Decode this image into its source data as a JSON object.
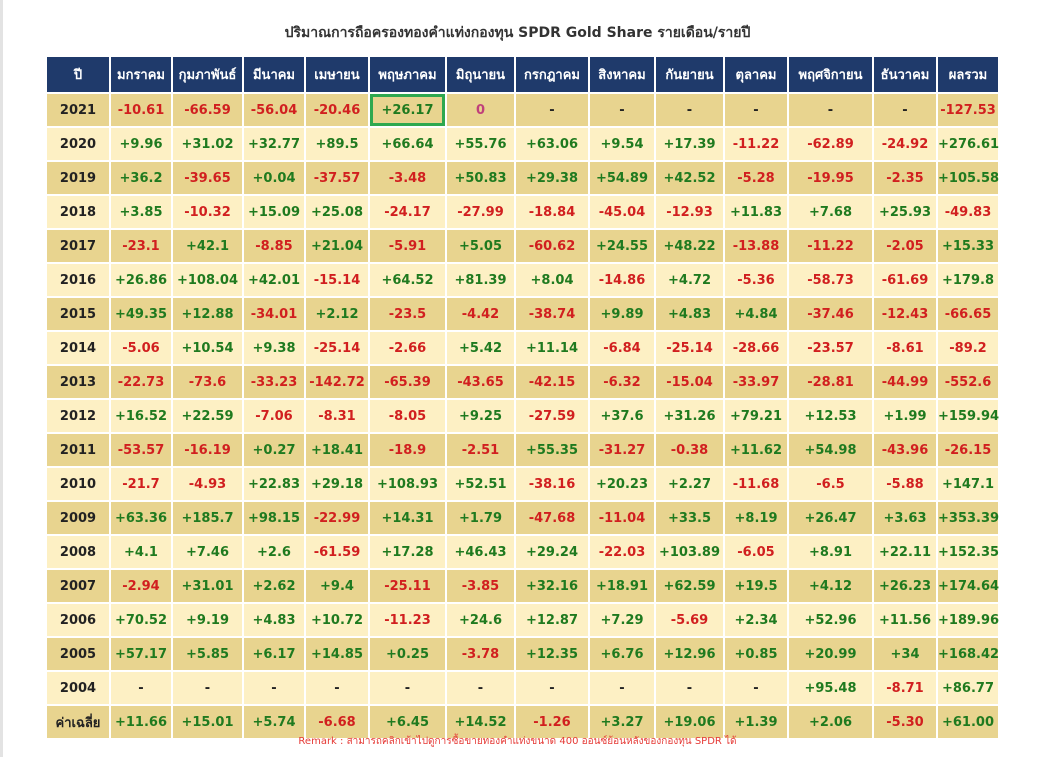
{
  "title": "ปริมาณการถือครองทองคำแท่งกองทุน SPDR Gold Share รายเดือน/รายปี",
  "headers": [
    "ปี",
    "มกราคม",
    "กุมภาพันธ์",
    "มีนาคม",
    "เมษายน",
    "พฤษภาคม",
    "มิถุนายน",
    "กรกฎาคม",
    "สิงหาคม",
    "กันยายน",
    "ตุลาคม",
    "พฤศจิกายน",
    "ธันวาคม",
    "ผลรวม"
  ],
  "rows": [
    [
      "2021",
      "-10.61",
      "-66.59",
      "-56.04",
      "-20.46",
      "+26.17",
      "0",
      "-",
      "-",
      "-",
      "-",
      "-",
      "-",
      "-127.53"
    ],
    [
      "2020",
      "+9.96",
      "+31.02",
      "+32.77",
      "+89.5",
      "+66.64",
      "+55.76",
      "+63.06",
      "+9.54",
      "+17.39",
      "-11.22",
      "-62.89",
      "-24.92",
      "+276.61"
    ],
    [
      "2019",
      "+36.2",
      "-39.65",
      "+0.04",
      "-37.57",
      "-3.48",
      "+50.83",
      "+29.38",
      "+54.89",
      "+42.52",
      "-5.28",
      "-19.95",
      "-2.35",
      "+105.58"
    ],
    [
      "2018",
      "+3.85",
      "-10.32",
      "+15.09",
      "+25.08",
      "-24.17",
      "-27.99",
      "-18.84",
      "-45.04",
      "-12.93",
      "+11.83",
      "+7.68",
      "+25.93",
      "-49.83"
    ],
    [
      "2017",
      "-23.1",
      "+42.1",
      "-8.85",
      "+21.04",
      "-5.91",
      "+5.05",
      "-60.62",
      "+24.55",
      "+48.22",
      "-13.88",
      "-11.22",
      "-2.05",
      "+15.33"
    ],
    [
      "2016",
      "+26.86",
      "+108.04",
      "+42.01",
      "-15.14",
      "+64.52",
      "+81.39",
      "+8.04",
      "-14.86",
      "+4.72",
      "-5.36",
      "-58.73",
      "-61.69",
      "+179.8"
    ],
    [
      "2015",
      "+49.35",
      "+12.88",
      "-34.01",
      "+2.12",
      "-23.5",
      "-4.42",
      "-38.74",
      "+9.89",
      "+4.83",
      "+4.84",
      "-37.46",
      "-12.43",
      "-66.65"
    ],
    [
      "2014",
      "-5.06",
      "+10.54",
      "+9.38",
      "-25.14",
      "-2.66",
      "+5.42",
      "+11.14",
      "-6.84",
      "-25.14",
      "-28.66",
      "-23.57",
      "-8.61",
      "-89.2"
    ],
    [
      "2013",
      "-22.73",
      "-73.6",
      "-33.23",
      "-142.72",
      "-65.39",
      "-43.65",
      "-42.15",
      "-6.32",
      "-15.04",
      "-33.97",
      "-28.81",
      "-44.99",
      "-552.6"
    ],
    [
      "2012",
      "+16.52",
      "+22.59",
      "-7.06",
      "-8.31",
      "-8.05",
      "+9.25",
      "-27.59",
      "+37.6",
      "+31.26",
      "+79.21",
      "+12.53",
      "+1.99",
      "+159.94"
    ],
    [
      "2011",
      "-53.57",
      "-16.19",
      "+0.27",
      "+18.41",
      "-18.9",
      "-2.51",
      "+55.35",
      "-31.27",
      "-0.38",
      "+11.62",
      "+54.98",
      "-43.96",
      "-26.15"
    ],
    [
      "2010",
      "-21.7",
      "-4.93",
      "+22.83",
      "+29.18",
      "+108.93",
      "+52.51",
      "-38.16",
      "+20.23",
      "+2.27",
      "-11.68",
      "-6.5",
      "-5.88",
      "+147.1"
    ],
    [
      "2009",
      "+63.36",
      "+185.7",
      "+98.15",
      "-22.99",
      "+14.31",
      "+1.79",
      "-47.68",
      "-11.04",
      "+33.5",
      "+8.19",
      "+26.47",
      "+3.63",
      "+353.39"
    ],
    [
      "2008",
      "+4.1",
      "+7.46",
      "+2.6",
      "-61.59",
      "+17.28",
      "+46.43",
      "+29.24",
      "-22.03",
      "+103.89",
      "-6.05",
      "+8.91",
      "+22.11",
      "+152.35"
    ],
    [
      "2007",
      "-2.94",
      "+31.01",
      "+2.62",
      "+9.4",
      "-25.11",
      "-3.85",
      "+32.16",
      "+18.91",
      "+62.59",
      "+19.5",
      "+4.12",
      "+26.23",
      "+174.64"
    ],
    [
      "2006",
      "+70.52",
      "+9.19",
      "+4.83",
      "+10.72",
      "-11.23",
      "+24.6",
      "+12.87",
      "+7.29",
      "-5.69",
      "+2.34",
      "+52.96",
      "+11.56",
      "+189.96"
    ],
    [
      "2005",
      "+57.17",
      "+5.85",
      "+6.17",
      "+14.85",
      "+0.25",
      "-3.78",
      "+12.35",
      "+6.76",
      "+12.96",
      "+0.85",
      "+20.99",
      "+34",
      "+168.42"
    ],
    [
      "2004",
      "-",
      "-",
      "-",
      "-",
      "-",
      "-",
      "-",
      "-",
      "-",
      "-",
      "+95.48",
      "-8.71",
      "+86.77"
    ],
    [
      "ค่าเฉลี่ย",
      "+11.66",
      "+15.01",
      "+5.74",
      "-6.68",
      "+6.45",
      "+14.52",
      "-1.26",
      "+3.27",
      "+19.06",
      "+1.39",
      "+2.06",
      "-5.30",
      "+61.00"
    ]
  ],
  "highlight": {
    "row": 0,
    "col": 5,
    "color": "#2fa84f"
  },
  "colors": {
    "header_bg": "#1f3a6b",
    "row_odd_bg": "#e8d48f",
    "row_even_bg": "#fdf0c4",
    "positive": "#1f7a1f",
    "negative": "#d11f1f",
    "zero": "#c0407a",
    "remark": "#e53935"
  },
  "remark": "Remark : สามารถคลิกเข้าไปดูการซื้อขายทองคำแท่งขนาด 400 ออนซ์ย้อนหลังของกองทุน SPDR ได้"
}
